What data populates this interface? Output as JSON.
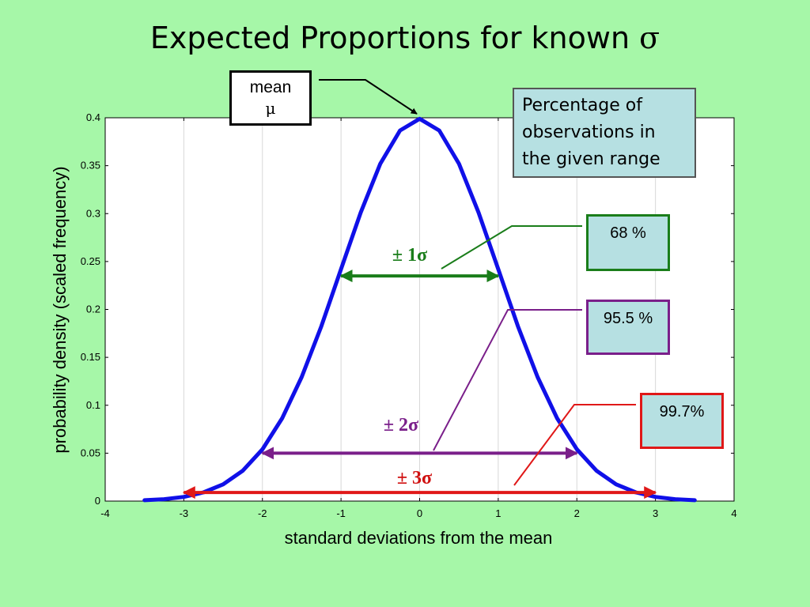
{
  "title": {
    "text": "Expected Proportions for known ",
    "symbol": "σ"
  },
  "mean_box": {
    "line1": "mean",
    "line2": "μ"
  },
  "note_box": {
    "lines": [
      "Percentage of",
      "observations in",
      "the given range"
    ]
  },
  "percent_boxes": {
    "one": {
      "text": "68 %",
      "color": "#1a7d1a"
    },
    "two": {
      "text": "95.5 %",
      "color": "#7a1f8a"
    },
    "three": {
      "text": "99.7%",
      "color": "#e01818"
    }
  },
  "range_labels": {
    "one": {
      "pm": "± ",
      "text": "1σ",
      "color": "#1a7d1a"
    },
    "two": {
      "pm": "± ",
      "text": "2σ",
      "color": "#7a1f8a"
    },
    "three": {
      "pm": "± ",
      "text": "3σ",
      "color": "#d01010"
    }
  },
  "chart_data": {
    "type": "line",
    "xlabel": "standard deviations from the mean",
    "ylabel": "probability density (scaled frequency)",
    "xlim": [
      -4,
      4
    ],
    "ylim": [
      0,
      0.4
    ],
    "x_ticks": [
      "-4",
      "-3",
      "-2",
      "-1",
      "0",
      "1",
      "2",
      "3",
      "4"
    ],
    "y_ticks": [
      "0",
      "0.05",
      "0.1",
      "0.15",
      "0.2",
      "0.25",
      "0.3",
      "0.35",
      "0.4"
    ],
    "grid": "vertical",
    "series": [
      {
        "color": "#1010e8",
        "x": [
          -3.5,
          -3.25,
          -3,
          -2.75,
          -2.5,
          -2.25,
          -2,
          -1.75,
          -1.5,
          -1.25,
          -1,
          -0.75,
          -0.5,
          -0.25,
          0,
          0.25,
          0.5,
          0.75,
          1,
          1.25,
          1.5,
          1.75,
          2,
          2.25,
          2.5,
          2.75,
          3,
          3.25,
          3.5
        ],
        "y": [
          0.0009,
          0.002,
          0.0044,
          0.0091,
          0.0175,
          0.0317,
          0.054,
          0.0863,
          0.1295,
          0.1826,
          0.242,
          0.3011,
          0.3521,
          0.3867,
          0.3989,
          0.3867,
          0.3521,
          0.3011,
          0.242,
          0.1826,
          0.1295,
          0.0863,
          0.054,
          0.0317,
          0.0175,
          0.0091,
          0.0044,
          0.002,
          0.0009
        ]
      }
    ],
    "ranges": [
      {
        "label": "± 1σ",
        "x": [
          -1,
          1
        ],
        "y": 0.235,
        "percent": "68 %",
        "color": "#1a7d1a"
      },
      {
        "label": "± 2σ",
        "x": [
          -2,
          2
        ],
        "y": 0.05,
        "percent": "95.5 %",
        "color": "#7a1f8a"
      },
      {
        "label": "± 3σ",
        "x": [
          -3,
          3
        ],
        "y": 0.009,
        "percent": "99.7%",
        "color": "#e01818"
      }
    ]
  }
}
